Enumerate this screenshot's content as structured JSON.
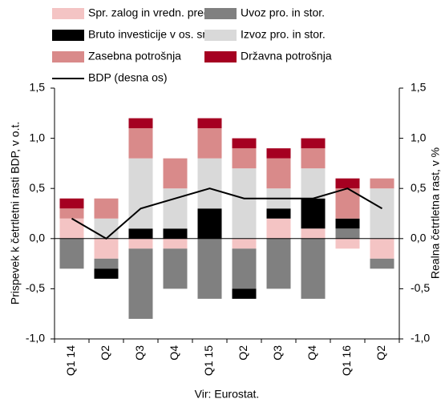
{
  "chart_data": {
    "type": "bar",
    "y_label": "Prispevek k četrtletni rasti BDP, v o.t.",
    "y2_label": "Realna četrtletna rast, v %",
    "source": "Vir: Eurostat.",
    "stacked": true,
    "categories": [
      "Q1 14",
      "Q2",
      "Q3",
      "Q4",
      "Q1 15",
      "Q2",
      "Q3",
      "Q4",
      "Q1 16",
      "Q2"
    ],
    "series": [
      {
        "name": "Spr. zalog in vredn. pred.",
        "color": "#f4c4c4",
        "values": [
          0.2,
          -0.2,
          -0.1,
          -0.1,
          0,
          -0.1,
          0.2,
          0.1,
          -0.1,
          -0.2
        ]
      },
      {
        "name": "Uvoz pro. in stor.",
        "color": "#808080",
        "values": [
          -0.3,
          -0.1,
          -0.7,
          -0.4,
          -0.6,
          -0.4,
          -0.5,
          -0.6,
          0.1,
          -0.1
        ]
      },
      {
        "name": "Bruto investicije v os. sr.",
        "color": "#000000",
        "values": [
          0,
          -0.1,
          0.1,
          0.1,
          0.3,
          -0.1,
          0.1,
          0.3,
          0.1,
          0
        ]
      },
      {
        "name": "Izvoz pro. in stor.",
        "color": "#d9d9d9",
        "values": [
          0,
          0.2,
          0.7,
          0.4,
          0.5,
          0.7,
          0.2,
          0.3,
          0,
          0.5
        ]
      },
      {
        "name": "Zasebna potrošnja",
        "color": "#d98a8a",
        "values": [
          0.1,
          0.2,
          0.3,
          0.3,
          0.3,
          0.2,
          0.3,
          0.2,
          0.3,
          0.1
        ]
      },
      {
        "name": "Državna potrošnja",
        "color": "#a50021",
        "values": [
          0.1,
          0,
          0.1,
          0,
          0.1,
          0.1,
          0.1,
          0.1,
          0.1,
          0
        ]
      },
      {
        "name": "BDP (desna os)",
        "color": "#000000",
        "type": "line",
        "axis": "y2",
        "values": [
          0.2,
          0.0,
          0.3,
          0.4,
          0.5,
          0.4,
          0.4,
          0.4,
          0.5,
          0.3
        ]
      }
    ],
    "ylim": [
      -1.0,
      1.5
    ],
    "yticks": [
      {
        "value": -1.0,
        "label": "-1,0"
      },
      {
        "value": -0.5,
        "label": "-0,5"
      },
      {
        "value": 0,
        "label": "0,0"
      },
      {
        "value": 0.5,
        "label": "0,5"
      },
      {
        "value": 1.0,
        "label": "1,0"
      },
      {
        "value": 1.5,
        "label": "1,5"
      }
    ],
    "y2lim": [
      -1.0,
      1.5
    ],
    "y2ticks": [
      {
        "value": -1.0,
        "label": "-1,0"
      },
      {
        "value": -0.5,
        "label": "-0,5"
      },
      {
        "value": 0,
        "label": "0,0"
      },
      {
        "value": 0.5,
        "label": "0,5"
      },
      {
        "value": 1.0,
        "label": "1,0"
      },
      {
        "value": 1.5,
        "label": "1,5"
      }
    ],
    "legend": "top"
  }
}
